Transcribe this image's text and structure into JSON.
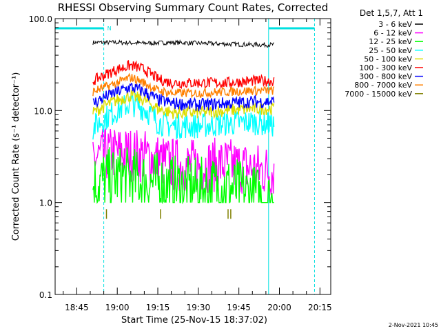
{
  "chart_data": {
    "type": "line",
    "title": "RHESSI Observing Summary Count Rates, Corrected",
    "xlabel": "Start Time (25-Nov-15 18:37:02)",
    "ylabel": "Corrected Count Rate (s⁻¹ detector⁻¹)",
    "y_scale": "log",
    "ylim": [
      0.1,
      100
    ],
    "xlim": [
      "18:37",
      "20:19"
    ],
    "y_ticks": [
      "0.1",
      "1.0",
      "10.0",
      "100.0"
    ],
    "x_ticks": [
      "18:45",
      "19:00",
      "19:15",
      "19:30",
      "19:45",
      "20:00",
      "20:15"
    ],
    "legend_position": "right",
    "legend_header": "Det 1,5,7, Att 1",
    "timestamp": "2-Nov-2021 10:45",
    "night_label": "N",
    "night_intervals": [
      {
        "start": "18:37",
        "end": "18:55"
      },
      {
        "start": "19:56",
        "end": "20:13"
      }
    ],
    "data_window": {
      "start": "18:51",
      "end": "19:58"
    },
    "series": [
      {
        "name": "3 - 6 keV",
        "color": "#000000",
        "x": [
          "18:51",
          "19:00",
          "19:10",
          "19:20",
          "19:30",
          "19:40",
          "19:50",
          "19:58"
        ],
        "y": [
          55,
          55,
          54,
          55,
          54,
          53,
          52,
          52
        ]
      },
      {
        "name": "6 - 12 keV",
        "color": "#ff00ff",
        "x": [
          "18:51",
          "19:00",
          "19:10",
          "19:20",
          "19:30",
          "19:40",
          "19:50",
          "19:58"
        ],
        "y": [
          3.0,
          3.5,
          3.2,
          2.6,
          2.5,
          2.6,
          2.3,
          2.2
        ]
      },
      {
        "name": "12 - 25 keV",
        "color": "#00ff00",
        "x": [
          "18:51",
          "19:00",
          "19:10",
          "19:20",
          "19:30",
          "19:40",
          "19:50",
          "19:58"
        ],
        "y": [
          1.6,
          1.9,
          1.7,
          1.5,
          1.4,
          1.5,
          1.2,
          1.0
        ]
      },
      {
        "name": "25 - 50 keV",
        "color": "#00ffff",
        "x": [
          "18:51",
          "19:00",
          "19:05",
          "19:10",
          "19:15",
          "19:20",
          "19:30",
          "19:40",
          "19:50",
          "19:58"
        ],
        "y": [
          6.5,
          10,
          12,
          10.5,
          7.5,
          6.8,
          6.8,
          7.2,
          7.5,
          7.0
        ]
      },
      {
        "name": "50 - 100 keV",
        "color": "#dddd00",
        "x": [
          "18:51",
          "19:00",
          "19:05",
          "19:10",
          "19:15",
          "19:20",
          "19:30",
          "19:40",
          "19:50",
          "19:58"
        ],
        "y": [
          9.5,
          13,
          14.5,
          13,
          10.5,
          9.5,
          9.5,
          10,
          10.5,
          10.5
        ]
      },
      {
        "name": "100 - 300 keV",
        "color": "#ff0000",
        "x": [
          "18:51",
          "19:00",
          "19:05",
          "19:10",
          "19:15",
          "19:20",
          "19:30",
          "19:40",
          "19:50",
          "19:58"
        ],
        "y": [
          21,
          28,
          31,
          28,
          22,
          20,
          20,
          20,
          21,
          21
        ]
      },
      {
        "name": "300 - 800 keV",
        "color": "#0000ff",
        "x": [
          "18:51",
          "19:00",
          "19:05",
          "19:10",
          "19:15",
          "19:20",
          "19:30",
          "19:40",
          "19:50",
          "19:58"
        ],
        "y": [
          12,
          16,
          18,
          16,
          13,
          12,
          11.5,
          12,
          12.5,
          12.5
        ]
      },
      {
        "name": "800 - 7000 keV",
        "color": "#ff8000",
        "x": [
          "18:51",
          "19:00",
          "19:05",
          "19:10",
          "19:15",
          "19:20",
          "19:30",
          "19:40",
          "19:50",
          "19:58"
        ],
        "y": [
          16,
          20,
          23,
          20,
          16.5,
          15.5,
          15.5,
          16,
          16.5,
          16.5
        ]
      },
      {
        "name": "7000 - 15000 keV",
        "color": "#808000",
        "x": [
          "18:56",
          "19:16",
          "19:41",
          "19:42"
        ],
        "y": [
          0.75,
          0.75,
          0.75,
          0.75
        ]
      }
    ]
  }
}
